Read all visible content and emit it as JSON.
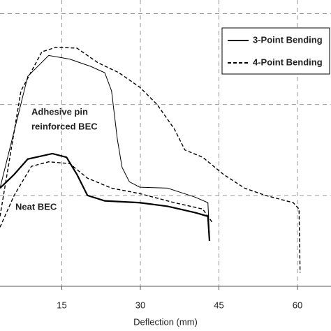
{
  "chart_data": {
    "type": "line",
    "x_label": "Deflection (mm)",
    "xlim": [
      3.2,
      66.4
    ],
    "xticks": [
      15,
      30,
      45,
      60
    ],
    "ylim": [
      0,
      3.15
    ],
    "ygrid": [
      1,
      2,
      3
    ],
    "grid": true,
    "annotations": [
      "Adhesive pin",
      "reinforced BEC",
      "Neat BEC"
    ],
    "series": [
      {
        "name": "3-Point Bending",
        "color": "#000000",
        "dash": "solid",
        "lines": [
          {
            "width": 1,
            "x": [
              3.2,
              8.5,
              12.5,
              16.5,
              20.5,
              23.2,
              24.5,
              25.6,
              26.5,
              27.9,
              29.9,
              35.2,
              40.5,
              42.9,
              43.2
            ],
            "values": [
              1.08,
              2.31,
              2.54,
              2.5,
              2.42,
              2.35,
              2.15,
              1.62,
              1.31,
              1.15,
              1.09,
              1.08,
              0.98,
              0.92,
              0.54
            ]
          },
          {
            "width": 2.2,
            "x": [
              3.2,
              5.9,
              8.5,
              13.2,
              15.9,
              17.9,
              19.9,
              23.2,
              29.9,
              35.2,
              40.5,
              42.9,
              43.2
            ],
            "values": [
              1.08,
              1.23,
              1.4,
              1.46,
              1.42,
              1.23,
              1.0,
              0.94,
              0.92,
              0.88,
              0.81,
              0.77,
              0.5
            ]
          }
        ]
      },
      {
        "name": "4-Point Bending",
        "color": "#000000",
        "dash": "dashed",
        "lines": [
          {
            "width": 1.4,
            "x": [
              3.2,
              7.2,
              11.2,
              13.9,
              17.9,
              21.9,
              25.9,
              29.9,
              33.2,
              36.5,
              38.5,
              41.9,
              45.9,
              49.9,
              53.9,
              59.2,
              60.3,
              60.5
            ],
            "values": [
              0.77,
              2.15,
              2.58,
              2.63,
              2.62,
              2.46,
              2.35,
              2.19,
              2.0,
              1.73,
              1.5,
              1.42,
              1.23,
              1.08,
              1.0,
              0.92,
              0.85,
              0.15
            ]
          },
          {
            "width": 1.4,
            "x": [
              3.2,
              5.9,
              9.2,
              12.5,
              16.5,
              19.9,
              24.5,
              29.9,
              36.5,
              41.9,
              43.9
            ],
            "values": [
              0.65,
              1.0,
              1.32,
              1.37,
              1.35,
              1.19,
              1.08,
              1.02,
              0.92,
              0.85,
              0.69
            ]
          }
        ]
      }
    ]
  }
}
